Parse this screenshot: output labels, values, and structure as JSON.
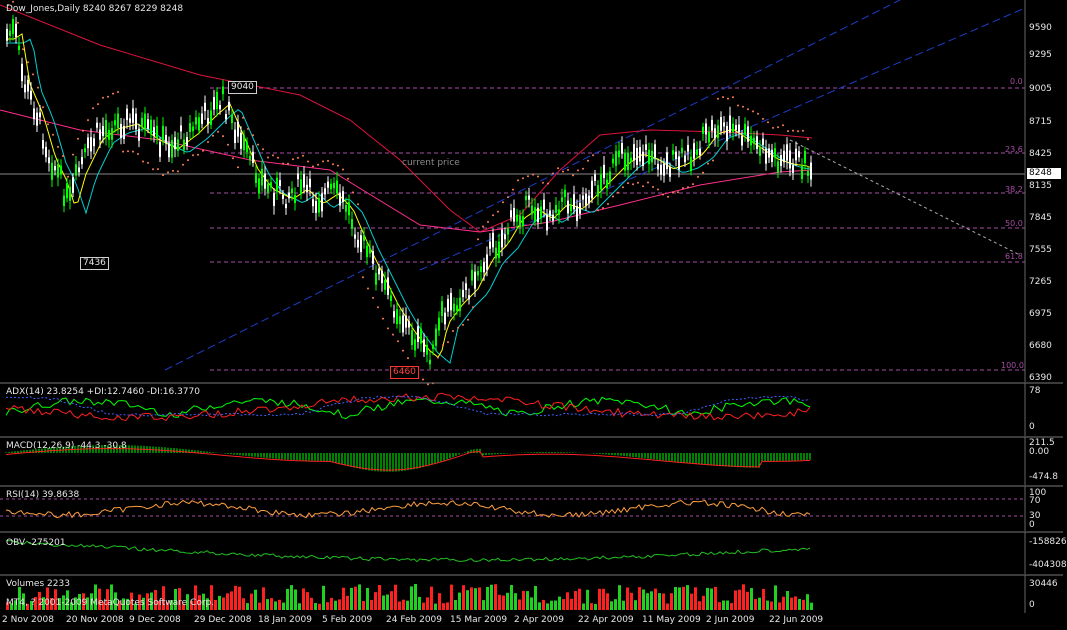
{
  "header": {
    "symbol_info": "Dow_Jones,Daily  8240 8267 8229 8248"
  },
  "price_axis": {
    "ticks": [
      "9590",
      "9295",
      "9005",
      "8715",
      "8425",
      "8135",
      "7845",
      "7555",
      "7265",
      "6975",
      "6680",
      "6390"
    ]
  },
  "price_tag": "8248",
  "annotations": {
    "current_price": "current price",
    "high": "9040",
    "mid_low": "7436",
    "low": "6460"
  },
  "fibonacci": {
    "levels": [
      "0.0",
      "23.6",
      "38.2",
      "50.0",
      "61.8",
      "100.0"
    ]
  },
  "indicators": [
    {
      "label": "ADX(14) 23.8254 +DI:12.7460 -DI:16.3770",
      "ticks": [
        "78",
        "0"
      ]
    },
    {
      "label": "MACD(12,26,9) -44.3 -30.8",
      "ticks": [
        "211.5",
        "0.00",
        "-474.8"
      ]
    },
    {
      "label": "RSI(14) 39.8638",
      "ticks": [
        "100",
        "70",
        "30",
        "0"
      ]
    },
    {
      "label": "OBV -275201",
      "ticks": [
        "-158826",
        "-404308"
      ]
    },
    {
      "label": "Volumes 2233",
      "ticks": [
        "30446",
        "0"
      ]
    }
  ],
  "copyright": "MT4, ? 2001-2009 MetaQuotes Software Corp.",
  "time_axis": [
    "2 Nov 2008",
    "20 Nov 2008",
    "9 Dec 2008",
    "29 Dec 2008",
    "18 Jan 2009",
    "5 Feb 2009",
    "24 Feb 2009",
    "15 Mar 2009",
    "2 Apr 2009",
    "22 Apr 2009",
    "11 May 2009",
    "2 Jun 2009",
    "22 Jun 2009"
  ],
  "colors": {
    "background": "#000000",
    "bull_candle": "#00ff00",
    "bear_candle": "#ffffff",
    "ma_long": "#dc143c",
    "ma_mid": "#00ced1",
    "ma_short": "#ffff00",
    "sar": "#ff7f50",
    "channel": "#1e3cc8",
    "fib": "#a64ca6"
  }
}
